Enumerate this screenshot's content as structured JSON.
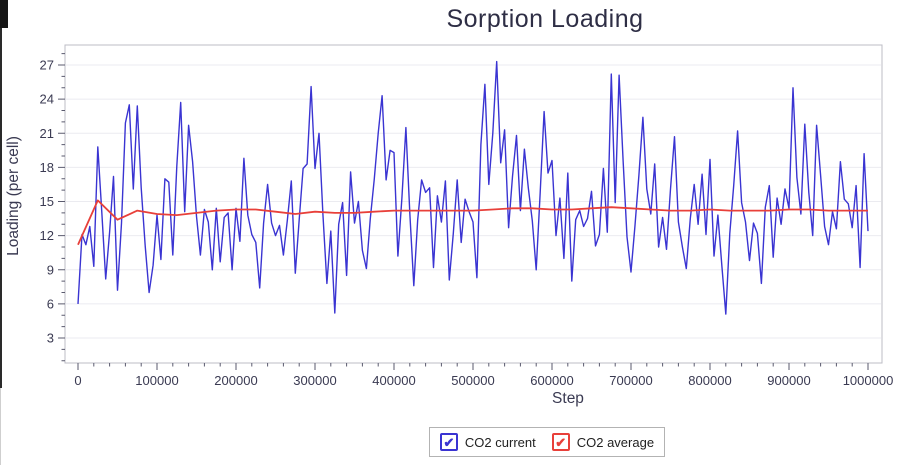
{
  "window": {
    "background": "#ffffff"
  },
  "chart_data": {
    "type": "line",
    "title": "Sorption Loading",
    "xlabel": "Step",
    "ylabel": "Loading (per cell)",
    "xlim": [
      0,
      1000000
    ],
    "ylim": [
      0.8,
      28.8
    ],
    "grid": "horizontal-major-gridlines",
    "legend_position": "bottom-center",
    "colors": {
      "title_text": "#2e2e45",
      "tick_text": "#3a3a52",
      "gridline": "#ebebf0",
      "plot_border": "#bcbcc6",
      "tick_mark": "#5a5a6e"
    },
    "yticks": [
      3,
      6,
      9,
      12,
      15,
      18,
      21,
      24,
      27
    ],
    "xtick_labels": [
      "0",
      "100000",
      "200000",
      "300000",
      "400000",
      "500000",
      "600000",
      "700000",
      "800000",
      "900000",
      "1000000"
    ],
    "series": [
      {
        "name": "CO2 current",
        "color": "#3a34d2",
        "checkbox_checked": true,
        "x_start": 0,
        "x_step": 5000,
        "values": [
          6.0,
          12.1,
          11.2,
          12.8,
          9.3,
          19.8,
          14.2,
          8.2,
          12.3,
          17.2,
          7.2,
          13.1,
          21.9,
          23.5,
          16.1,
          23.4,
          16.2,
          11.1,
          7.0,
          9.4,
          13.8,
          9.9,
          17.0,
          16.7,
          10.3,
          18.1,
          23.7,
          14.1,
          21.7,
          18.5,
          13.7,
          10.3,
          14.3,
          13.2,
          9.0,
          14.4,
          9.7,
          13.6,
          14.0,
          9.0,
          14.4,
          11.5,
          18.8,
          13.8,
          12.1,
          11.4,
          7.4,
          13.1,
          16.5,
          13.1,
          12.0,
          12.9,
          10.3,
          13.4,
          16.8,
          8.7,
          13.4,
          17.9,
          18.3,
          25.1,
          17.9,
          21.0,
          13.9,
          7.8,
          12.4,
          5.2,
          13.0,
          14.9,
          8.5,
          17.6,
          13.1,
          15.0,
          10.7,
          9.1,
          13.5,
          17.0,
          21.0,
          24.3,
          16.9,
          19.5,
          19.3,
          10.2,
          15.3,
          21.5,
          14.0,
          7.6,
          13.4,
          16.9,
          15.8,
          16.2,
          9.2,
          15.5,
          13.2,
          16.8,
          8.1,
          12.2,
          16.9,
          11.4,
          15.2,
          14.1,
          13.2,
          8.3,
          20.0,
          25.3,
          16.5,
          21.0,
          27.3,
          18.4,
          21.3,
          12.7,
          17.2,
          20.8,
          14.2,
          19.6,
          16.2,
          13.3,
          9.0,
          15.8,
          22.9,
          17.5,
          18.6,
          12.0,
          15.3,
          10.0,
          17.5,
          8.0,
          13.4,
          14.2,
          12.8,
          13.5,
          15.9,
          11.1,
          12.1,
          17.9,
          12.3,
          26.2,
          14.9,
          26.1,
          18.6,
          11.9,
          8.8,
          12.9,
          17.3,
          22.4,
          16.1,
          13.9,
          18.3,
          11.0,
          13.6,
          10.8,
          16.1,
          20.7,
          13.2,
          11.0,
          9.1,
          13.5,
          16.5,
          13.0,
          17.4,
          12.1,
          18.7,
          10.2,
          13.8,
          9.3,
          5.1,
          12.2,
          16.4,
          21.2,
          14.9,
          13.2,
          9.8,
          13.1,
          12.2,
          7.8,
          14.5,
          16.4,
          10.1,
          15.3,
          13.0,
          16.1,
          14.4,
          25.0,
          17.1,
          13.9,
          21.8,
          15.8,
          12.0,
          21.7,
          17.3,
          12.8,
          11.2,
          14.1,
          12.6,
          18.5,
          15.2,
          14.8,
          12.7,
          16.4,
          9.2,
          19.2,
          12.4
        ]
      },
      {
        "name": "CO2 average",
        "color": "#e8403a",
        "checkbox_checked": true,
        "x_start": 0,
        "x_step": 25000,
        "values": [
          11.2,
          15.1,
          13.4,
          14.2,
          13.9,
          13.8,
          14.0,
          14.2,
          14.3,
          14.3,
          14.1,
          13.9,
          14.1,
          14.0,
          14.0,
          14.1,
          14.2,
          14.2,
          14.2,
          14.2,
          14.2,
          14.3,
          14.4,
          14.4,
          14.3,
          14.3,
          14.4,
          14.5,
          14.4,
          14.3,
          14.2,
          14.2,
          14.3,
          14.2,
          14.2,
          14.2,
          14.3,
          14.3,
          14.2,
          14.2,
          14.2
        ]
      }
    ]
  },
  "legend": {
    "check_glyph": "✔"
  }
}
